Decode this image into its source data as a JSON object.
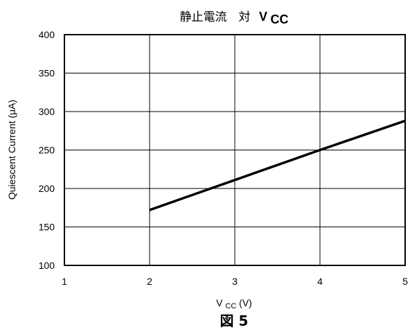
{
  "chart_data": {
    "type": "line",
    "title_prefix": "静止電流　対",
    "title_var": "V",
    "title_sub": "CC",
    "xlabel_var": "V",
    "xlabel_sub": "CC",
    "xlabel_unit": " (V)",
    "ylabel": "Quiescent Current (μA)",
    "caption": "図 5",
    "xlim": [
      1,
      5
    ],
    "ylim": [
      100,
      400
    ],
    "xticks": [
      "1",
      "2",
      "3",
      "4",
      "5"
    ],
    "yticks": [
      "100",
      "150",
      "200",
      "250",
      "300",
      "350",
      "400"
    ],
    "grid": true,
    "series": [
      {
        "x": [
          2,
          3,
          4,
          5
        ],
        "y": [
          172,
          211,
          250,
          288
        ]
      }
    ]
  }
}
